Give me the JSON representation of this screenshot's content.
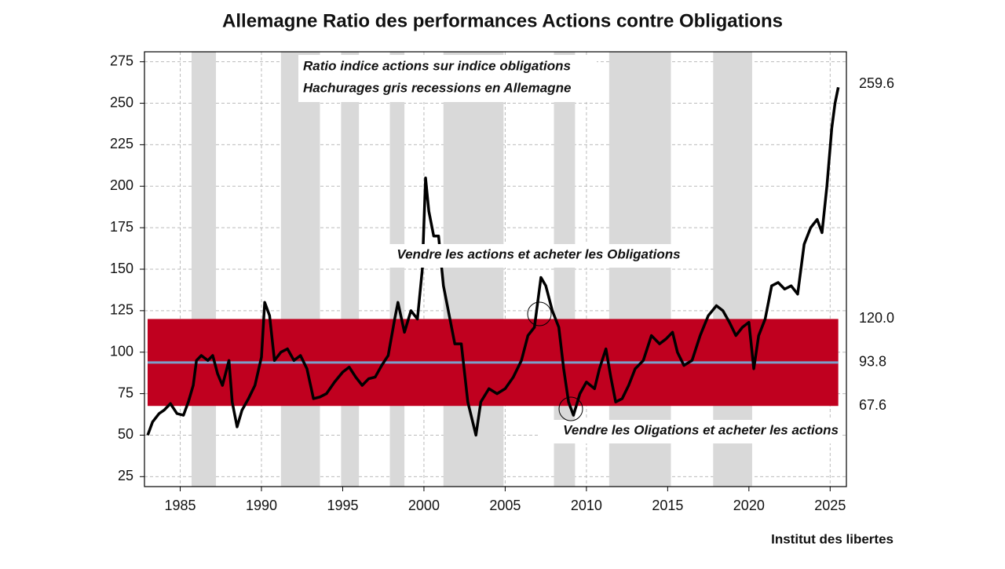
{
  "chart_data": {
    "type": "line",
    "title": "Allemagne Ratio des performances Actions contre Obligations",
    "source": "Institut des libertes",
    "annotations": [
      "Ratio indice actions sur indice obligations",
      "Hachurages gris recessions en Allemagne",
      "Vendre les actions et acheter les Obligations",
      "Vendre les Oligations et acheter les actions"
    ],
    "x": [
      1983.0,
      1983.3,
      1983.7,
      1984.0,
      1984.4,
      1984.8,
      1985.2,
      1985.5,
      1985.8,
      1986.0,
      1986.3,
      1986.7,
      1987.0,
      1987.3,
      1987.6,
      1988.0,
      1988.2,
      1988.5,
      1988.8,
      1989.2,
      1989.6,
      1990.0,
      1990.2,
      1990.5,
      1990.8,
      1991.2,
      1991.6,
      1992.0,
      1992.4,
      1992.8,
      1993.2,
      1993.6,
      1994.0,
      1994.5,
      1995.0,
      1995.4,
      1995.8,
      1996.2,
      1996.6,
      1997.0,
      1997.4,
      1997.8,
      1998.2,
      1998.4,
      1998.8,
      1999.2,
      1999.6,
      1999.9,
      2000.1,
      2000.3,
      2000.6,
      2000.9,
      2001.2,
      2001.6,
      2001.9,
      2002.3,
      2002.7,
      2003.0,
      2003.2,
      2003.5,
      2004.0,
      2004.5,
      2005.0,
      2005.5,
      2006.0,
      2006.4,
      2006.8,
      2007.2,
      2007.5,
      2007.9,
      2008.3,
      2008.6,
      2008.9,
      2009.2,
      2009.6,
      2010.0,
      2010.5,
      2010.8,
      2011.2,
      2011.5,
      2011.8,
      2012.2,
      2012.6,
      2013.0,
      2013.5,
      2014.0,
      2014.5,
      2014.9,
      2015.3,
      2015.6,
      2016.0,
      2016.5,
      2017.0,
      2017.5,
      2018.0,
      2018.4,
      2018.8,
      2019.2,
      2019.6,
      2020.0,
      2020.3,
      2020.6,
      2021.0,
      2021.4,
      2021.8,
      2022.2,
      2022.6,
      2023.0,
      2023.4,
      2023.8,
      2024.2,
      2024.5,
      2024.8,
      2025.1,
      2025.3,
      2025.5
    ],
    "values": [
      50,
      58,
      63,
      65,
      69,
      63,
      62,
      70,
      80,
      95,
      98,
      95,
      98,
      87,
      80,
      95,
      70,
      55,
      65,
      72,
      80,
      97,
      130,
      122,
      95,
      100,
      102,
      95,
      98,
      90,
      72,
      73,
      75,
      82,
      88,
      91,
      85,
      80,
      84,
      85,
      92,
      98,
      120,
      130,
      112,
      125,
      120,
      150,
      205,
      185,
      170,
      170,
      140,
      120,
      105,
      105,
      70,
      58,
      50,
      70,
      78,
      75,
      78,
      85,
      95,
      110,
      115,
      145,
      140,
      125,
      115,
      90,
      70,
      62,
      75,
      82,
      78,
      90,
      102,
      85,
      70,
      72,
      80,
      90,
      95,
      110,
      105,
      108,
      112,
      100,
      92,
      95,
      110,
      122,
      128,
      125,
      118,
      110,
      115,
      118,
      90,
      110,
      120,
      140,
      142,
      138,
      140,
      135,
      165,
      175,
      180,
      172,
      200,
      235,
      250,
      259.6
    ],
    "color": "#000000",
    "recessions": [
      [
        1985.7,
        1987.2
      ],
      [
        1991.2,
        1993.6
      ],
      [
        1994.9,
        1996.0
      ],
      [
        1997.9,
        1998.8
      ],
      [
        2001.2,
        2004.9
      ],
      [
        2008.0,
        2009.3
      ],
      [
        2011.4,
        2015.2
      ],
      [
        2017.8,
        2020.2
      ]
    ],
    "recession_color": "#d9d9d9",
    "band_low": {
      "value": 67.6,
      "label": "67.6"
    },
    "band_high": {
      "value": 120,
      "label": "120.0"
    },
    "mean": {
      "value": 93.8,
      "label": "93.8"
    },
    "band_color": "#c0001f",
    "band_label_color": "#b0103a",
    "mean_color": "#7d9fc9",
    "xlim": [
      1982.8,
      2026
    ],
    "ylim": [
      19,
      281
    ],
    "xticks": [
      1985,
      1990,
      1995,
      2000,
      2005,
      2010,
      2015,
      2020,
      2025
    ],
    "yticks": [
      25,
      50,
      75,
      100,
      125,
      150,
      175,
      200,
      225,
      250,
      275
    ],
    "grid": true
  }
}
